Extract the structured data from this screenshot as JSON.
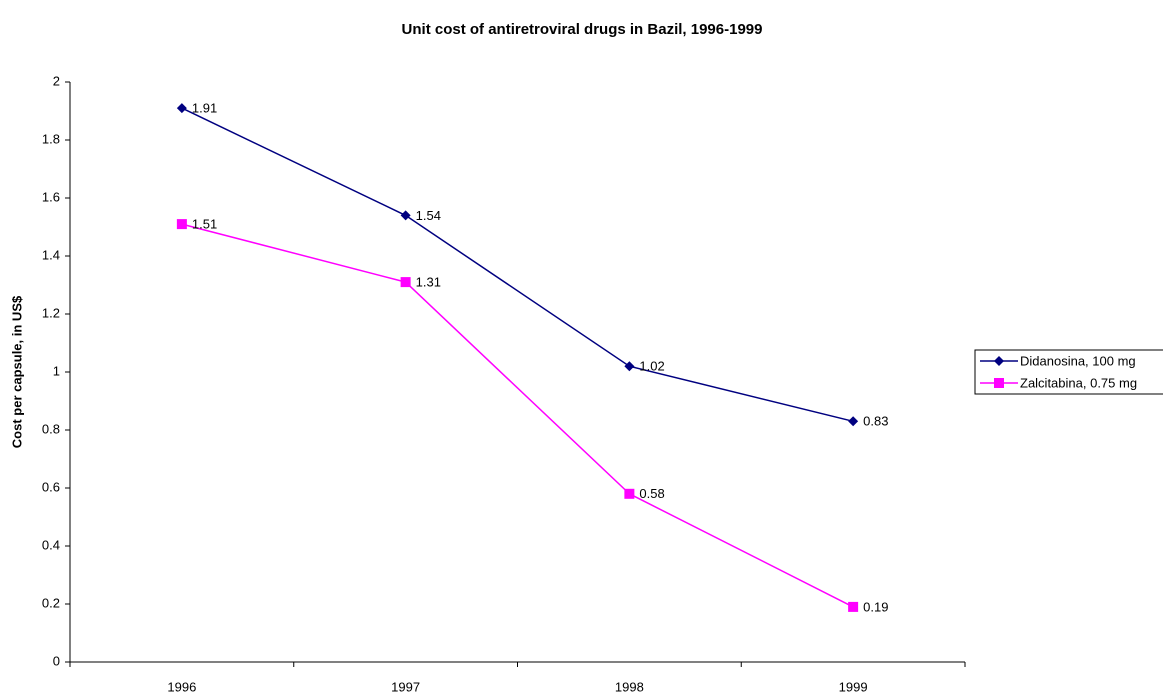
{
  "chart_data": {
    "type": "line",
    "title": "Unit cost of antiretroviral drugs in Bazil, 1996-1999",
    "y_label": "Cost per capsule, in US$",
    "categories": [
      "1996",
      "1997",
      "1998",
      "1999"
    ],
    "series": [
      {
        "name": "Didanosina, 100 mg",
        "color": "#000080",
        "marker": "diamond",
        "values": [
          1.91,
          1.54,
          1.02,
          0.83
        ]
      },
      {
        "name": "Zalcitabina, 0.75 mg",
        "color": "#ff00ff",
        "marker": "square",
        "values": [
          1.51,
          1.31,
          0.58,
          0.19
        ]
      }
    ],
    "ylim": [
      0,
      2
    ],
    "yticks": [
      0,
      0.2,
      0.4,
      0.6,
      0.8,
      1,
      1.2,
      1.4,
      1.6,
      1.8,
      2
    ],
    "grid": false,
    "legend": "right"
  }
}
